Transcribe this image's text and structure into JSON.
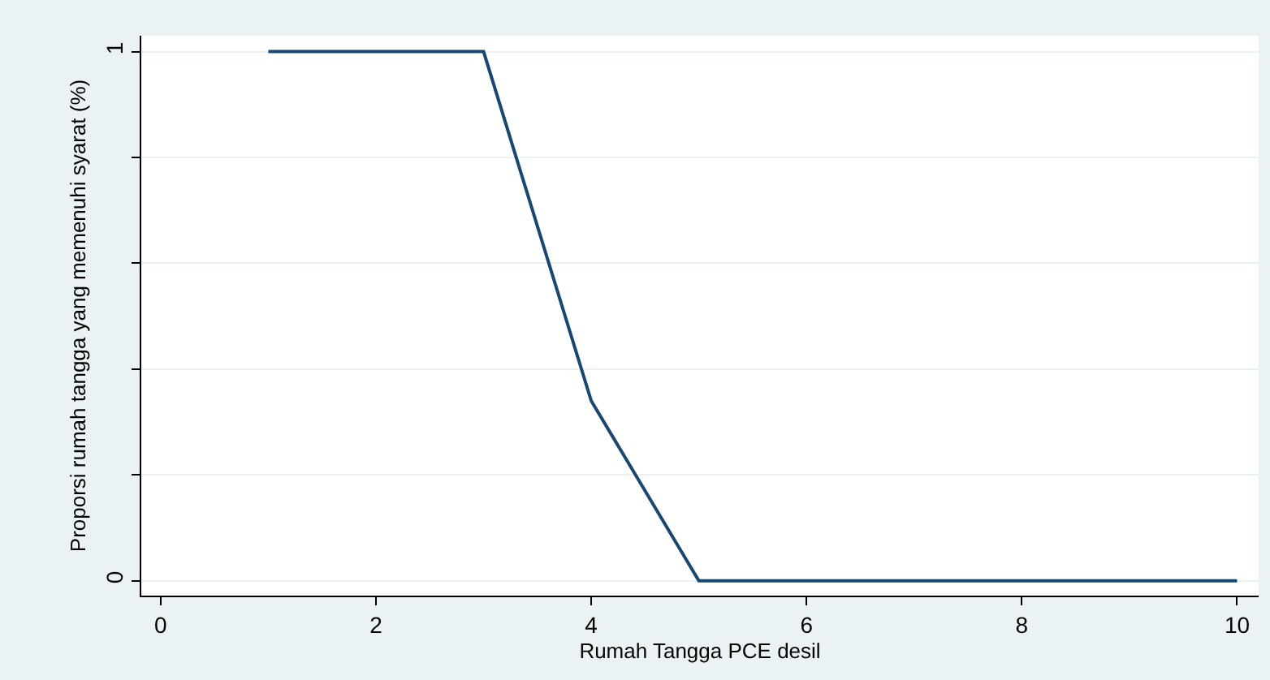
{
  "chart_data": {
    "type": "line",
    "xlabel": "Rumah Tangga PCE desil",
    "ylabel": "Proporsi rumah tangga yang memenuhi syarat (%)",
    "x": [
      1,
      2,
      3,
      4,
      5,
      6,
      7,
      8,
      9,
      10
    ],
    "series": [
      {
        "color": "#1a476f",
        "values": [
          1,
          1,
          1,
          0.34,
          0,
          0,
          0,
          0,
          0,
          0
        ]
      }
    ],
    "xlim": [
      -0.18,
      10.2
    ],
    "xticks": [
      0,
      2,
      4,
      6,
      8,
      10
    ],
    "ylim": [
      -0.028,
      1.03
    ],
    "yticks": [
      0,
      {
        "value": 0.2,
        "label": null
      },
      {
        "value": 0.4,
        "label": null
      },
      {
        "value": 0.6,
        "label": null
      },
      {
        "value": 0.8,
        "label": null
      },
      1
    ],
    "grid": "y",
    "legend": false,
    "marker": "none",
    "line_style": "solid"
  }
}
